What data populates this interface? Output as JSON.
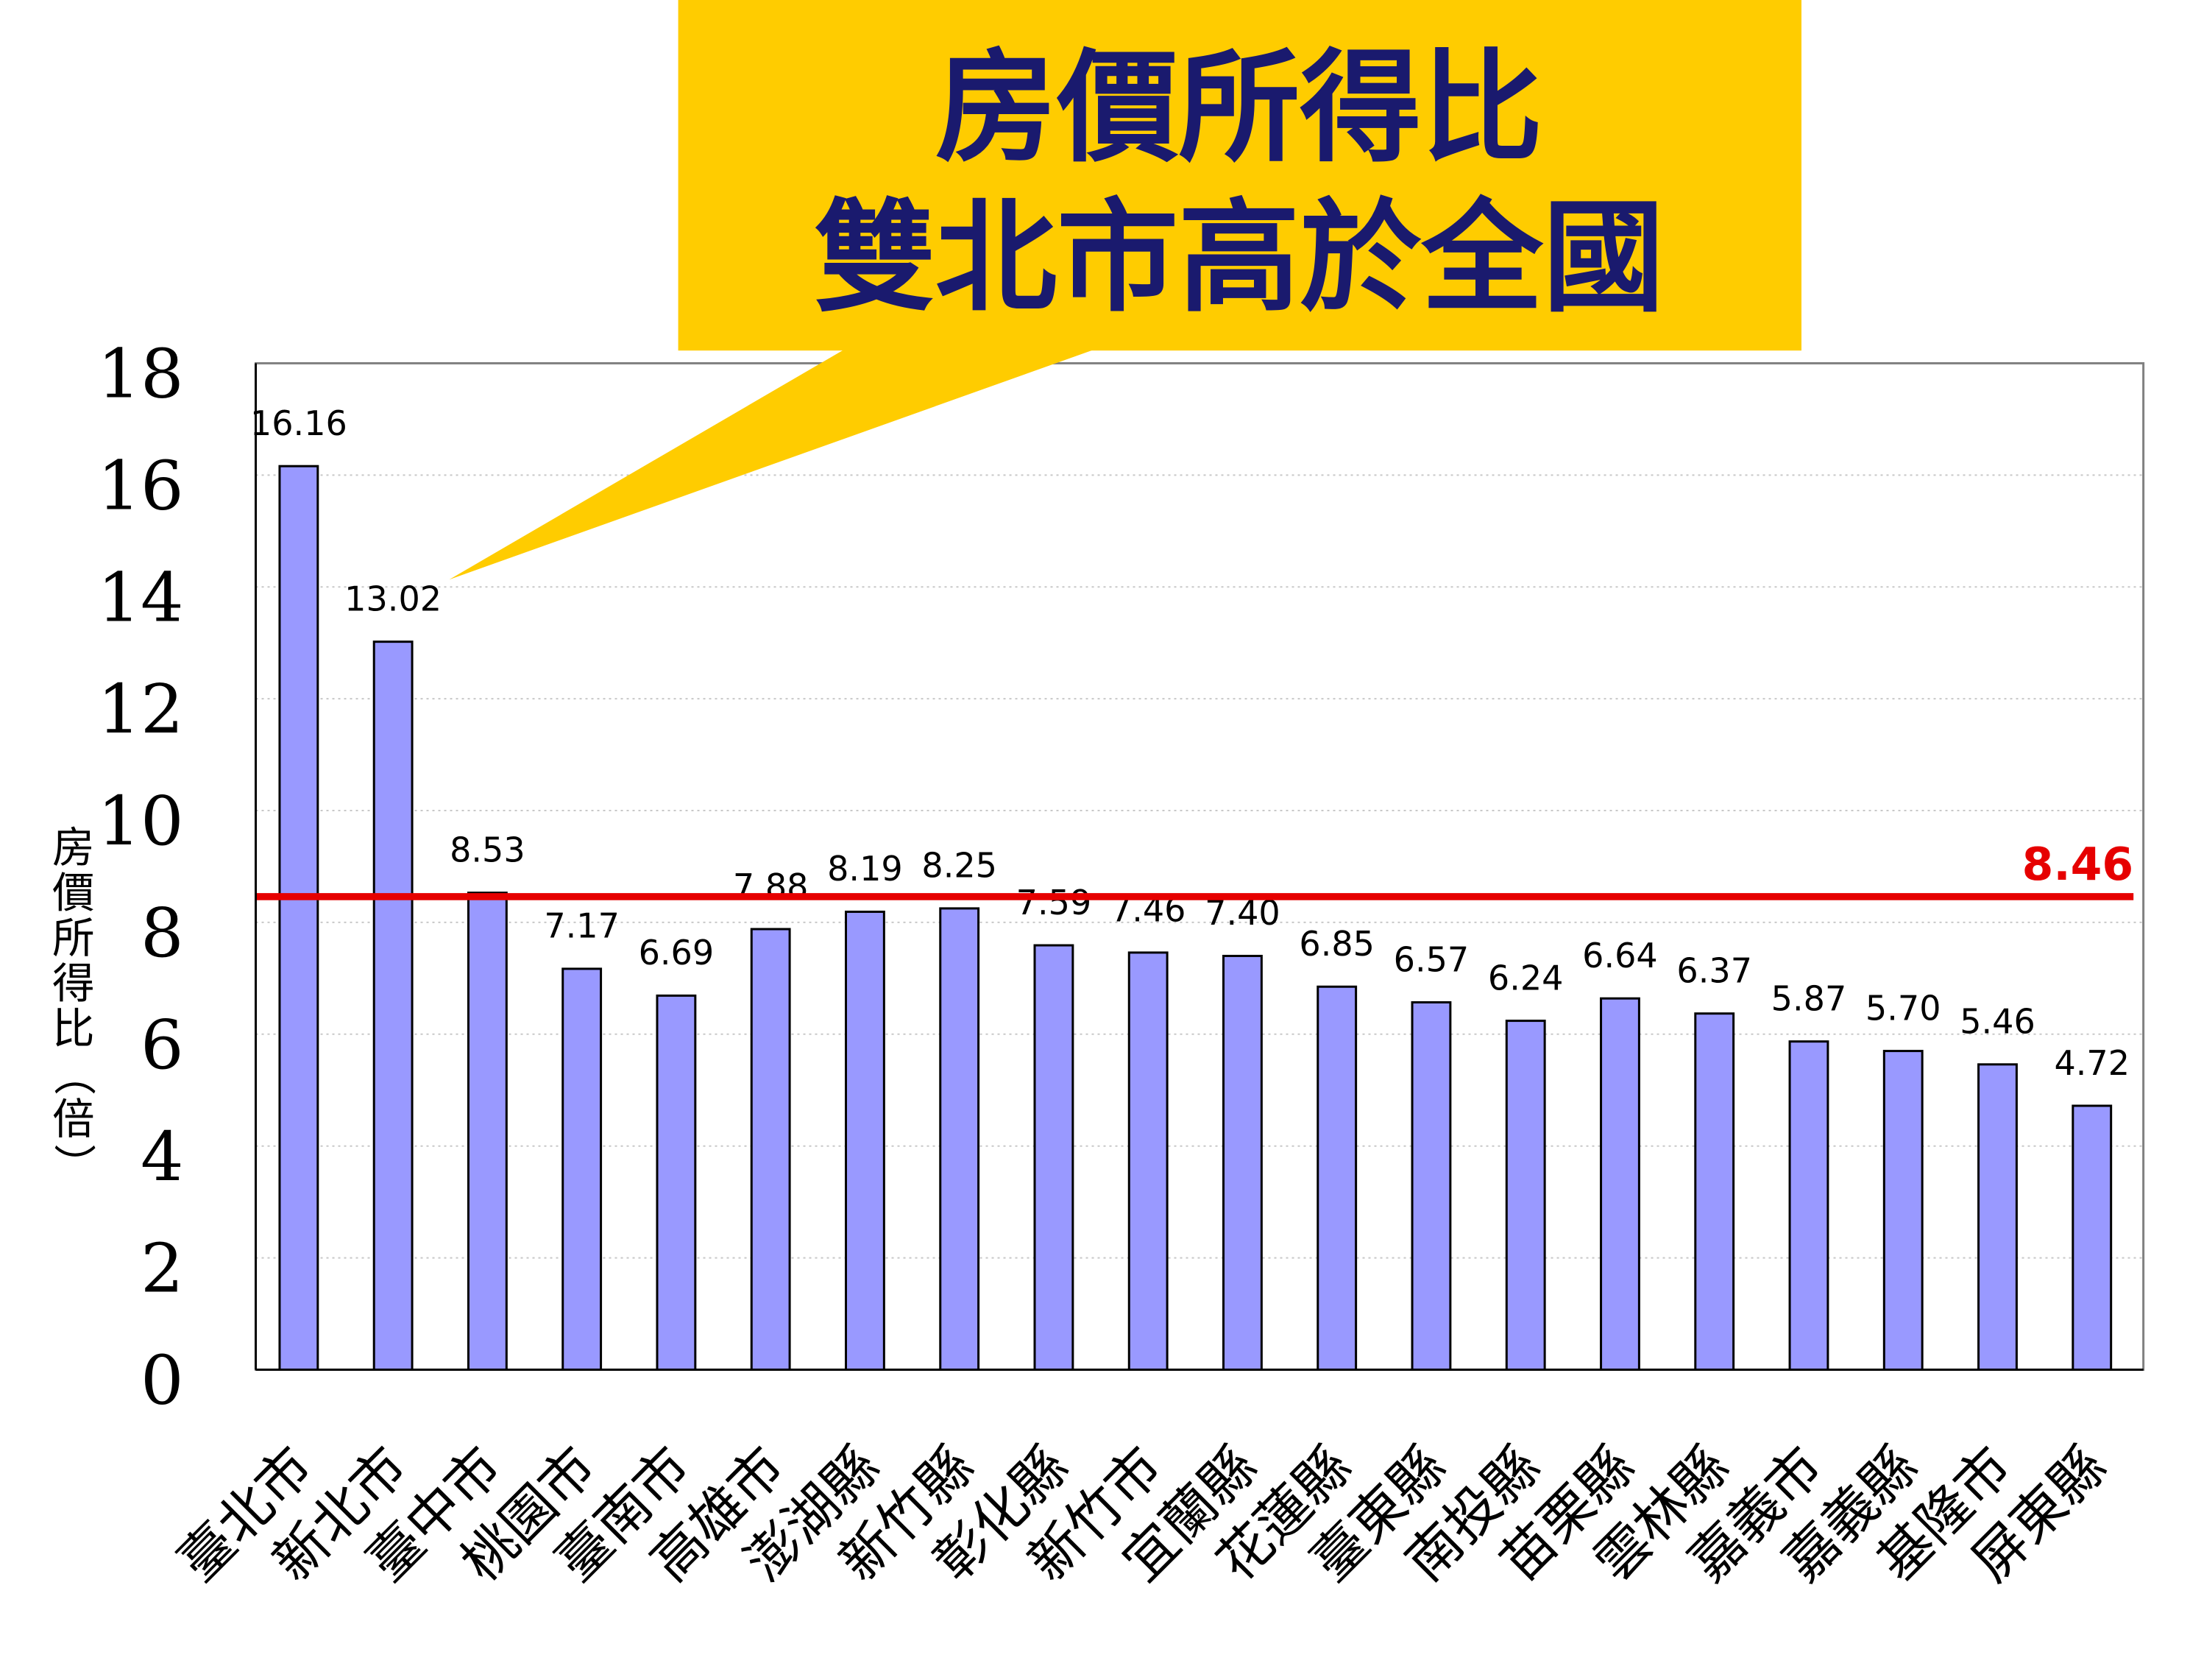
{
  "callout": {
    "line1": "房價所得比",
    "line2": "雙北市高於全國",
    "fill_color": "#FFCC00",
    "text_color": "#1a1a6e"
  },
  "chart_data": {
    "type": "bar",
    "ylabel": "房價所得比（倍）",
    "ylim": [
      0,
      18
    ],
    "yticks": [
      0,
      2,
      4,
      6,
      8,
      10,
      12,
      14,
      16,
      18
    ],
    "grid": true,
    "categories": [
      "臺北市",
      "新北市",
      "臺中市",
      "桃園市",
      "臺南市",
      "高雄市",
      "澎湖縣",
      "新竹縣",
      "彰化縣",
      "新竹市",
      "宜蘭縣",
      "花蓮縣",
      "臺東縣",
      "南投縣",
      "苗栗縣",
      "雲林縣",
      "嘉義市",
      "嘉義縣",
      "基隆市",
      "屏東縣"
    ],
    "values": [
      16.16,
      13.02,
      8.53,
      7.17,
      6.69,
      7.88,
      8.19,
      8.25,
      7.59,
      7.46,
      7.4,
      6.85,
      6.57,
      6.24,
      6.64,
      6.37,
      5.87,
      5.7,
      5.46,
      4.72
    ],
    "value_labels": [
      "16.16",
      "13.02",
      "8.53",
      "7.17",
      "6.69",
      "7.88",
      "8.19",
      "8.25",
      "7.59",
      "7.46",
      "7.40",
      "6.85",
      "6.57",
      "6.24",
      "6.64",
      "6.37",
      "5.87",
      "5.70",
      "5.46",
      "4.72"
    ],
    "reference_line": {
      "value": 8.46,
      "label": "8.46",
      "color": "#e60000"
    },
    "bar_color": "#9999ff"
  }
}
